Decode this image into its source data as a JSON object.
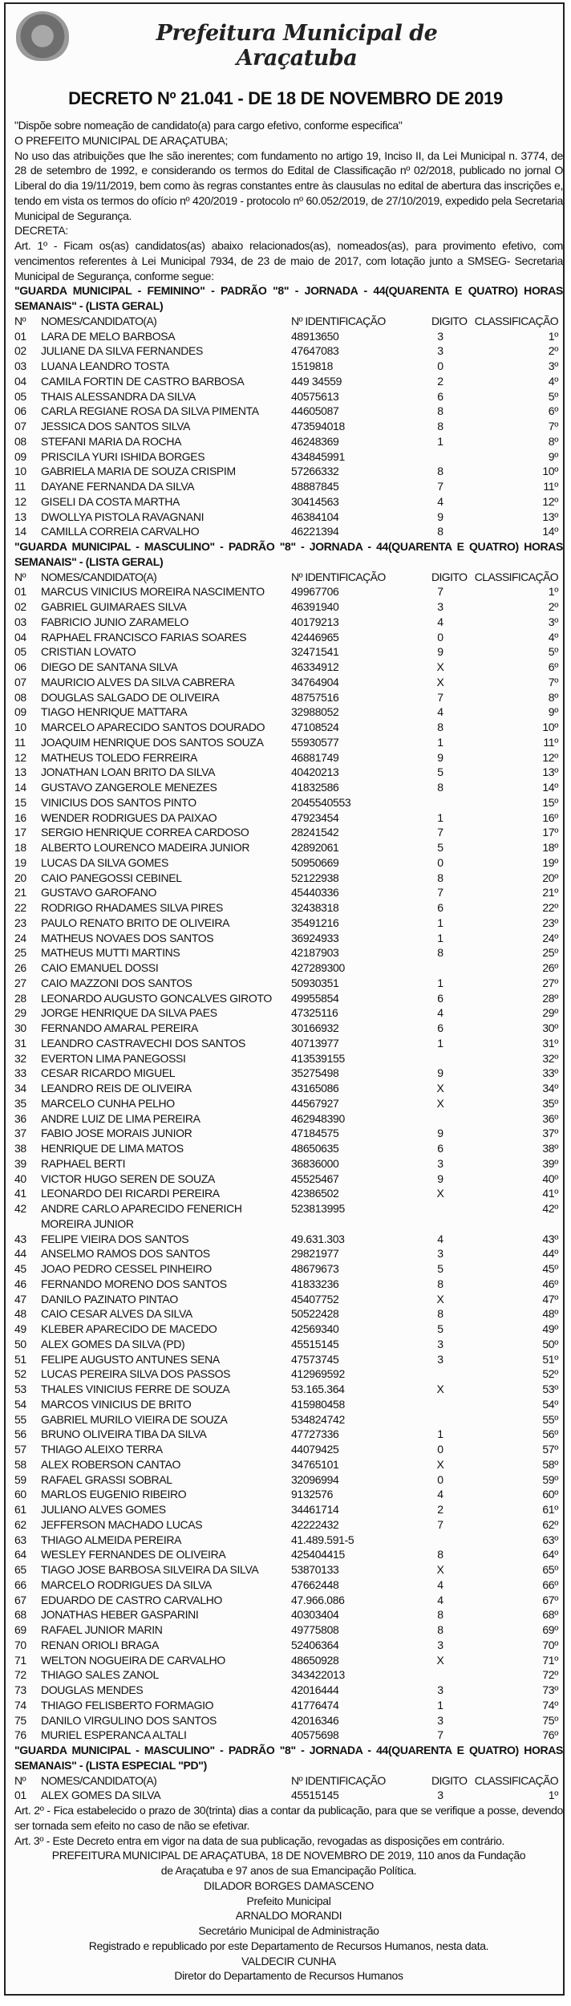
{
  "header": {
    "brand": "Prefeitura Municipal de Araçatuba",
    "title": "DECRETO Nº 21.041 -  DE  18 DE NOVEMBRO DE 2019"
  },
  "intro": [
    "\"Dispõe sobre   nomeação de    candidato(a) para cargo  efetivo, conforme especifica\"",
    "O PREFEITO MUNICIPAL DE ARAÇATUBA;",
    "No uso das atribuições que lhe são inerentes; com fundamento no artigo 19, Inciso II, da Lei Municipal n. 3774, de 28 de setembro de 1992, e considerando os termos do Edital de Classificação nº 02/2018, publicado no jornal O Liberal do dia 19/11/2019, bem como às regras constantes entre às clausulas no edital de abertura das inscrições e, tendo em vista os termos do ofício nº 420/2019 - protocolo nº  60.052/2019, de 27/10/2019, expedido pela Secretaria Municipal de Segurança.",
    "DECRETA:",
    "Art. 1º - Ficam os(as) candidatos(as) abaixo relacionados(as), nomeados(as), para provimento efetivo, com vencimentos referentes à Lei Municipal 7934, de 23 de maio de 2017, com lotação junto a  SMSEG- Secretaria Municipal de Segurança, conforme segue:"
  ],
  "columns": [
    "Nº",
    "NOMES/CANDIDATO(A)",
    "Nº IDENTIFICAÇÃO",
    "DIGITO",
    "CLASSIFICAÇÃO"
  ],
  "sections": [
    {
      "heading": "\"GUARDA MUNICIPAL - FEMININO\" - PADRÃO \"8\" - JORNADA - 44(QUARENTA E QUATRO) HORAS SEMANAIS\" - (LISTA GERAL)",
      "rows": [
        [
          "01",
          "LARA DE MELO BARBOSA",
          "48913650",
          "3",
          "1º"
        ],
        [
          "02",
          "JULIANE DA SILVA FERNANDES",
          "47647083",
          "3",
          "2º"
        ],
        [
          "03",
          "LUANA LEANDRO TOSTA",
          "1519818",
          "0",
          "3º"
        ],
        [
          "04",
          "CAMILA FORTIN DE CASTRO BARBOSA",
          "449 34559",
          "2",
          "4º"
        ],
        [
          "05",
          "THAIS ALESSANDRA DA SILVA",
          "40575613",
          "6",
          "5º"
        ],
        [
          "06",
          "CARLA REGIANE ROSA DA SILVA PIMENTA",
          "44605087",
          "8",
          "6º"
        ],
        [
          "07",
          "JESSICA DOS SANTOS SILVA",
          "473594018",
          "8",
          "7º"
        ],
        [
          "08",
          "STEFANI MARIA DA ROCHA",
          "46248369",
          "1",
          "8º"
        ],
        [
          "09",
          "PRISCILA YURI ISHIDA BORGES",
          "434845991",
          "",
          "9º"
        ],
        [
          "10",
          "GABRIELA MARIA DE SOUZA CRISPIM",
          "57266332",
          "8",
          "10º"
        ],
        [
          "11",
          "DAYANE FERNANDA DA SILVA",
          "48887845",
          "7",
          "11º"
        ],
        [
          "12",
          "GISELI DA COSTA MARTHA",
          "30414563",
          "4",
          "12º"
        ],
        [
          "13",
          "DWOLLYA PISTOLA RAVAGNANI",
          "46384104",
          "9",
          "13º"
        ],
        [
          "14",
          "CAMILLA CORREIA CARVALHO",
          "46221394",
          "8",
          "14º"
        ]
      ]
    },
    {
      "heading": "\"GUARDA MUNICIPAL - MASCULINO\" - PADRÃO \"8\" - JORNADA - 44(QUARENTA E QUATRO) HORAS SEMANAIS\" - (LISTA GERAL)",
      "rows": [
        [
          "01",
          "MARCUS VINICIUS MOREIRA NASCIMENTO",
          "49967706",
          "7",
          "1º"
        ],
        [
          "02",
          "GABRIEL GUIMARAES SILVA",
          "46391940",
          "3",
          "2º"
        ],
        [
          "03",
          "FABRICIO JUNIO ZARAMELO",
          "40179213",
          "4",
          "3º"
        ],
        [
          "04",
          "RAPHAEL FRANCISCO FARIAS SOARES",
          "42446965",
          "0",
          "4º"
        ],
        [
          "05",
          "CRISTIAN LOVATO",
          "32471541",
          "9",
          "5º"
        ],
        [
          "06",
          "DIEGO DE SANTANA SILVA",
          "46334912",
          "X",
          "6º"
        ],
        [
          "07",
          "MAURICIO ALVES DA SILVA CABRERA",
          "34764904",
          "X",
          "7º"
        ],
        [
          "08",
          "DOUGLAS SALGADO DE OLIVEIRA",
          "48757516",
          "7",
          "8º"
        ],
        [
          "09",
          "TIAGO HENRIQUE MATTARA",
          "32988052",
          "4",
          "9º"
        ],
        [
          "10",
          "MARCELO APARECIDO SANTOS DOURADO",
          "47108524",
          "8",
          "10º"
        ],
        [
          "11",
          "JOAQUIM HENRIQUE DOS SANTOS SOUZA",
          "55930577",
          "1",
          "11º"
        ],
        [
          "12",
          "MATHEUS TOLEDO FERREIRA",
          "46881749",
          "9",
          "12º"
        ],
        [
          "13",
          "JONATHAN LOAN BRITO DA SILVA",
          "40420213",
          "5",
          "13º"
        ],
        [
          "14",
          "GUSTAVO ZANGEROLE MENEZES",
          "41832586",
          "8",
          "14º"
        ],
        [
          "15",
          "VINICIUS DOS SANTOS PINTO",
          "2045540553",
          "",
          "15º"
        ],
        [
          "16",
          "WENDER RODRIGUES DA PAIXAO",
          "47923454",
          "1",
          "16º"
        ],
        [
          "17",
          "SERGIO HENRIQUE CORREA CARDOSO",
          "28241542",
          "7",
          "17º"
        ],
        [
          "18",
          "ALBERTO LOURENCO MADEIRA JUNIOR",
          "42892061",
          "5",
          "18º"
        ],
        [
          "19",
          "LUCAS DA SILVA GOMES",
          "50950669",
          "0",
          "19º"
        ],
        [
          "20",
          "CAIO PANEGOSSI CEBINEL",
          "52122938",
          "8",
          "20º"
        ],
        [
          "21",
          "GUSTAVO GAROFANO",
          "45440336",
          "7",
          "21º"
        ],
        [
          "22",
          "RODRIGO RHADAMES SILVA PIRES",
          "32438318",
          "6",
          "22º"
        ],
        [
          "23",
          "PAULO RENATO BRITO DE OLIVEIRA",
          "35491216",
          "1",
          "23º"
        ],
        [
          "24",
          "MATHEUS NOVAES DOS SANTOS",
          "36924933",
          "1",
          "24º"
        ],
        [
          "25",
          "MATHEUS MUTTI MARTINS",
          "42187903",
          "8",
          "25º"
        ],
        [
          "26",
          "CAIO EMANUEL DOSSI",
          "427289300",
          "",
          "26º"
        ],
        [
          "27",
          "CAIO MAZZONI DOS SANTOS",
          "50930351",
          "1",
          "27º"
        ],
        [
          "28",
          "LEONARDO AUGUSTO GONCALVES GIROTO",
          "49955854",
          "6",
          "28º"
        ],
        [
          "29",
          "JORGE HENRIQUE DA SILVA PAES",
          "47325116",
          "4",
          "29º"
        ],
        [
          "30",
          "FERNANDO AMARAL PEREIRA",
          "30166932",
          "6",
          "30º"
        ],
        [
          "31",
          "LEANDRO CASTRAVECHI DOS SANTOS",
          "40713977",
          "1",
          "31º"
        ],
        [
          "32",
          "EVERTON LIMA PANEGOSSI",
          "413539155",
          "",
          "32º"
        ],
        [
          "33",
          "CESAR RICARDO MIGUEL",
          "35275498",
          "9",
          "33º"
        ],
        [
          "34",
          "LEANDRO REIS DE OLIVEIRA",
          "43165086",
          "X",
          "34º"
        ],
        [
          "35",
          "MARCELO CUNHA PELHO",
          "44567927",
          "X",
          "35º"
        ],
        [
          "36",
          "ANDRE LUIZ DE LIMA PEREIRA",
          "462948390",
          "",
          "36º"
        ],
        [
          "37",
          "FABIO JOSE MORAIS JUNIOR",
          "47184575",
          "9",
          "37º"
        ],
        [
          "38",
          "HENRIQUE DE LIMA MATOS",
          "48650635",
          "6",
          "38º"
        ],
        [
          "39",
          "RAPHAEL BERTI",
          "36836000",
          "3",
          "39º"
        ],
        [
          "40",
          "VICTOR HUGO SEREN DE SOUZA",
          "45525467",
          "9",
          "40º"
        ],
        [
          "41",
          "LEONARDO DEI RICARDI PEREIRA",
          "42386502",
          "X",
          "41º"
        ],
        [
          "42",
          "ANDRE CARLO APARECIDO FENERICH MOREIRA JUNIOR",
          "523813995",
          "",
          "42º"
        ],
        [
          "43",
          "FELIPE VIEIRA DOS SANTOS",
          "49.631.303",
          "4",
          "43º"
        ],
        [
          "44",
          "ANSELMO RAMOS DOS SANTOS",
          "29821977",
          "3",
          "44º"
        ],
        [
          "45",
          "JOAO PEDRO CESSEL PINHEIRO",
          "48679673",
          "5",
          "45º"
        ],
        [
          "46",
          "FERNANDO MORENO DOS SANTOS",
          "41833236",
          "8",
          "46º"
        ],
        [
          "47",
          "DANILO PAZINATO PINTAO",
          "45407752",
          "X",
          "47º"
        ],
        [
          "48",
          "CAIO CESAR ALVES DA SILVA",
          "50522428",
          "8",
          "48º"
        ],
        [
          "49",
          "KLEBER APARECIDO DE MACEDO",
          "42569340",
          "5",
          "49º"
        ],
        [
          "50",
          "ALEX GOMES DA SILVA  (PD)",
          "45515145",
          "3",
          "50º"
        ],
        [
          "51",
          "FELIPE AUGUSTO ANTUNES SENA",
          "47573745",
          "3",
          "51º"
        ],
        [
          "52",
          "LUCAS PEREIRA SILVA DOS PASSOS",
          "412969592",
          "",
          "52º"
        ],
        [
          "53",
          "THALES VINICIUS FERRE DE SOUZA",
          "53.165.364",
          "X",
          "53º"
        ],
        [
          "54",
          "MARCOS VINICIUS DE BRITO",
          "415980458",
          "",
          "54º"
        ],
        [
          "55",
          "GABRIEL MURILO VIEIRA DE SOUZA",
          "534824742",
          "",
          "55º"
        ],
        [
          "56",
          "BRUNO OLIVEIRA TIBA DA SILVA",
          "47727336",
          "1",
          "56º"
        ],
        [
          "57",
          "THIAGO ALEIXO TERRA",
          "44079425",
          "0",
          "57º"
        ],
        [
          "58",
          "ALEX ROBERSON CANTAO",
          "34765101",
          "X",
          "58º"
        ],
        [
          "59",
          "RAFAEL GRASSI SOBRAL",
          "32096994",
          "0",
          "59º"
        ],
        [
          "60",
          "MARLOS EUGENIO RIBEIRO",
          "9132576",
          "4",
          "60º"
        ],
        [
          "61",
          "JULIANO ALVES GOMES",
          "34461714",
          "2",
          "61º"
        ],
        [
          "62",
          "JEFFERSON MACHADO LUCAS",
          "42222432",
          "7",
          "62º"
        ],
        [
          "63",
          "THIAGO ALMEIDA PEREIRA",
          "41.489.591-5",
          "",
          "63º"
        ],
        [
          "64",
          "WESLEY FERNANDES DE OLIVEIRA",
          "425404415",
          "8",
          "64º"
        ],
        [
          "65",
          "TIAGO JOSE BARBOSA SILVEIRA DA SILVA",
          "53870133",
          "X",
          "65º"
        ],
        [
          "66",
          "MARCELO RODRIGUES DA SILVA",
          "47662448",
          "4",
          "66º"
        ],
        [
          "67",
          "EDUARDO DE CASTRO CARVALHO",
          "47.966.086",
          "4",
          "67º"
        ],
        [
          "68",
          "JONATHAS HEBER GASPARINI",
          "40303404",
          "8",
          "68º"
        ],
        [
          "69",
          "RAFAEL JUNIOR MARIN",
          "49775808",
          "8",
          "69º"
        ],
        [
          "70",
          "RENAN ORIOLI BRAGA",
          "52406364",
          "3",
          "70º"
        ],
        [
          "71",
          "WELTON NOGUEIRA DE CARVALHO",
          "48650928",
          "X",
          "71º"
        ],
        [
          "72",
          "THIAGO SALES ZANOL",
          "343422013",
          "",
          "72º"
        ],
        [
          "73",
          "DOUGLAS MENDES",
          "42016444",
          "3",
          "73º"
        ],
        [
          "74",
          "THIAGO FELISBERTO FORMAGIO",
          "41776474",
          "1",
          "74º"
        ],
        [
          "75",
          "DANILO VIRGULINO DOS SANTOS",
          "42016346",
          "3",
          "75º"
        ],
        [
          "76",
          "MURIEL ESPERANCA ALTALI",
          "40575698",
          "7",
          "76º"
        ]
      ]
    },
    {
      "heading": "\"GUARDA MUNICIPAL - MASCULINO\" - PADRÃO \"8\" - JORNADA - 44(QUARENTA E QUATRO) HORAS SEMANAIS\" - (LISTA ESPECIAL \"PD\")",
      "rows": [
        [
          "01",
          "ALEX GOMES DA SILVA",
          "45515145",
          "3",
          "1º"
        ]
      ]
    }
  ],
  "articles": [
    "Art. 2º - Fica estabelecido o prazo de 30(trinta) dias a contar da publicação, para que se verifique a posse, devendo ser tornada sem efeito no caso de não se efetivar.",
    "Art. 3º - Este Decreto entra em vigor na data de sua publicação, revogadas as disposições em contrário."
  ],
  "signature": [
    "PREFEITURA MUNICIPAL DE ARAÇATUBA, 18 DE NOVEMBRO DE 2019, 110 anos da Fundação de Araçatuba e 97 anos de sua Emancipação Política.",
    "DILADOR BORGES DAMASCENO",
    "Prefeito Municipal",
    "ARNALDO MORANDI",
    "Secretário Municipal de Administração",
    "Registrado e republicado por este Departamento de Recursos Humanos, nesta data.",
    "VALDECIR CUNHA",
    "Diretor do Departamento de Recursos Humanos"
  ]
}
